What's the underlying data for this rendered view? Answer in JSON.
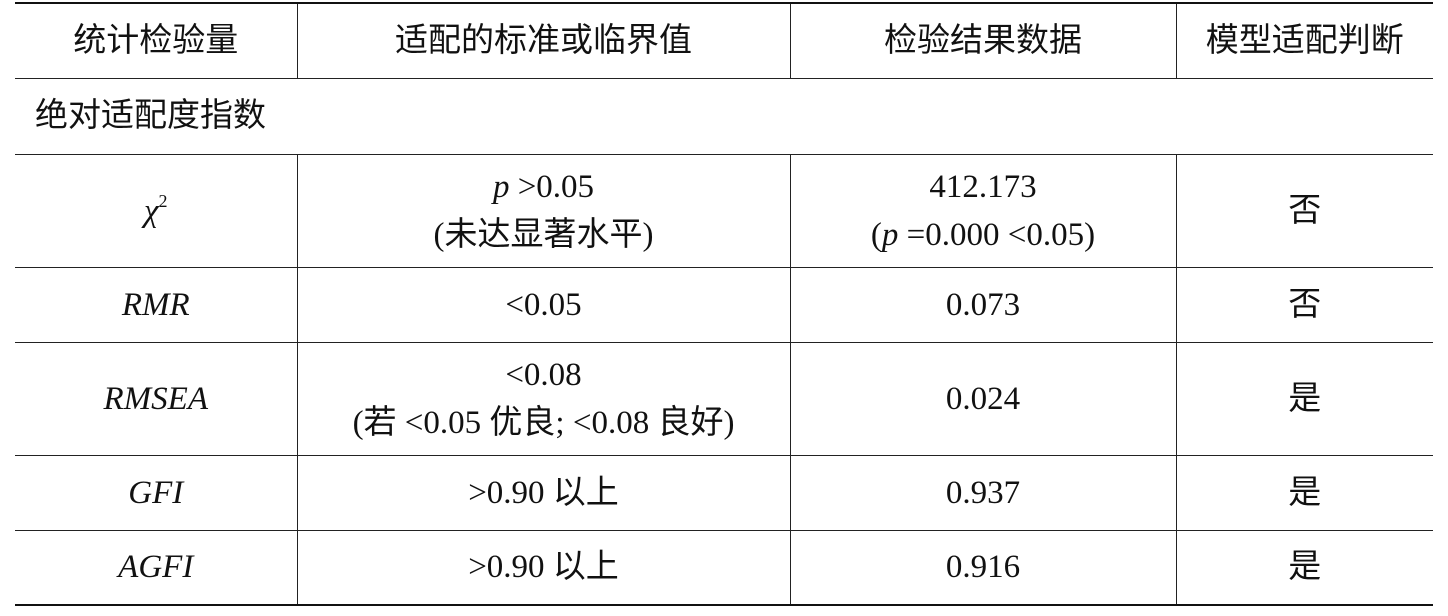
{
  "table": {
    "header": [
      "统计检验量",
      "适配的标准或临界值",
      "检验结果数据",
      "模型适配判断"
    ],
    "section": "绝对适配度指数",
    "rows": [
      [
        [
          [
            {
              "text": "χ",
              "italic": true
            },
            {
              "text": "2",
              "sup": true
            }
          ]
        ],
        [
          [
            {
              "text": "p",
              "italic": true
            },
            " >0.05"
          ],
          [
            "(未达显著水平)"
          ]
        ],
        [
          [
            "412.173"
          ],
          [
            "(",
            {
              "text": "p",
              "italic": true
            },
            " =0.000 <0.05)"
          ]
        ],
        [
          [
            "否"
          ]
        ]
      ],
      [
        [
          [
            {
              "text": "RMR",
              "italic": true
            }
          ]
        ],
        [
          [
            "<0.05"
          ]
        ],
        [
          [
            "0.073"
          ]
        ],
        [
          [
            "否"
          ]
        ]
      ],
      [
        [
          [
            {
              "text": "RMSEA",
              "italic": true
            }
          ]
        ],
        [
          [
            "<0.08"
          ],
          [
            "(若 <0.05 优良; <0.08 良好)"
          ]
        ],
        [
          [
            "0.024"
          ]
        ],
        [
          [
            "是"
          ]
        ]
      ],
      [
        [
          [
            {
              "text": "GFI",
              "italic": true
            }
          ]
        ],
        [
          [
            ">0.90 以上"
          ]
        ],
        [
          [
            "0.937"
          ]
        ],
        [
          [
            "是"
          ]
        ]
      ],
      [
        [
          [
            {
              "text": "AGFI",
              "italic": true
            }
          ]
        ],
        [
          [
            ">0.90 以上"
          ]
        ],
        [
          [
            "0.916"
          ]
        ],
        [
          [
            "是"
          ]
        ]
      ]
    ]
  }
}
